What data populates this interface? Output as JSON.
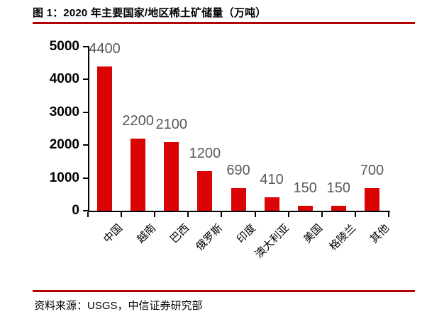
{
  "header": {
    "title": "图 1：2020 年主要国家/地区稀土矿储量（万吨）"
  },
  "footer": {
    "source": "资料来源：USGS，中信证券研究部"
  },
  "colors": {
    "bar": "#db0404",
    "rule": "#b00000",
    "axis": "#000000",
    "y_tick_label": "#000000",
    "x_tick_label": "#000000",
    "data_label": "#595959",
    "background": "#ffffff"
  },
  "chart_data": {
    "type": "bar",
    "title": "2020 年主要国家/地区稀土矿储量（万吨）",
    "categories": [
      "中国",
      "越南",
      "巴西",
      "俄罗斯",
      "印度",
      "澳大利亚",
      "美国",
      "格陵兰",
      "其他"
    ],
    "values": [
      4400,
      2200,
      2100,
      1200,
      690,
      410,
      150,
      150,
      700
    ],
    "unit": "万吨",
    "xlabel": "",
    "ylabel": "",
    "ylim": [
      0,
      5000
    ],
    "yticks": [
      0,
      1000,
      2000,
      3000,
      4000,
      5000
    ],
    "grid": false,
    "legend": "none",
    "data_labels": "outside-end",
    "x_label_rotation_deg": 45
  }
}
